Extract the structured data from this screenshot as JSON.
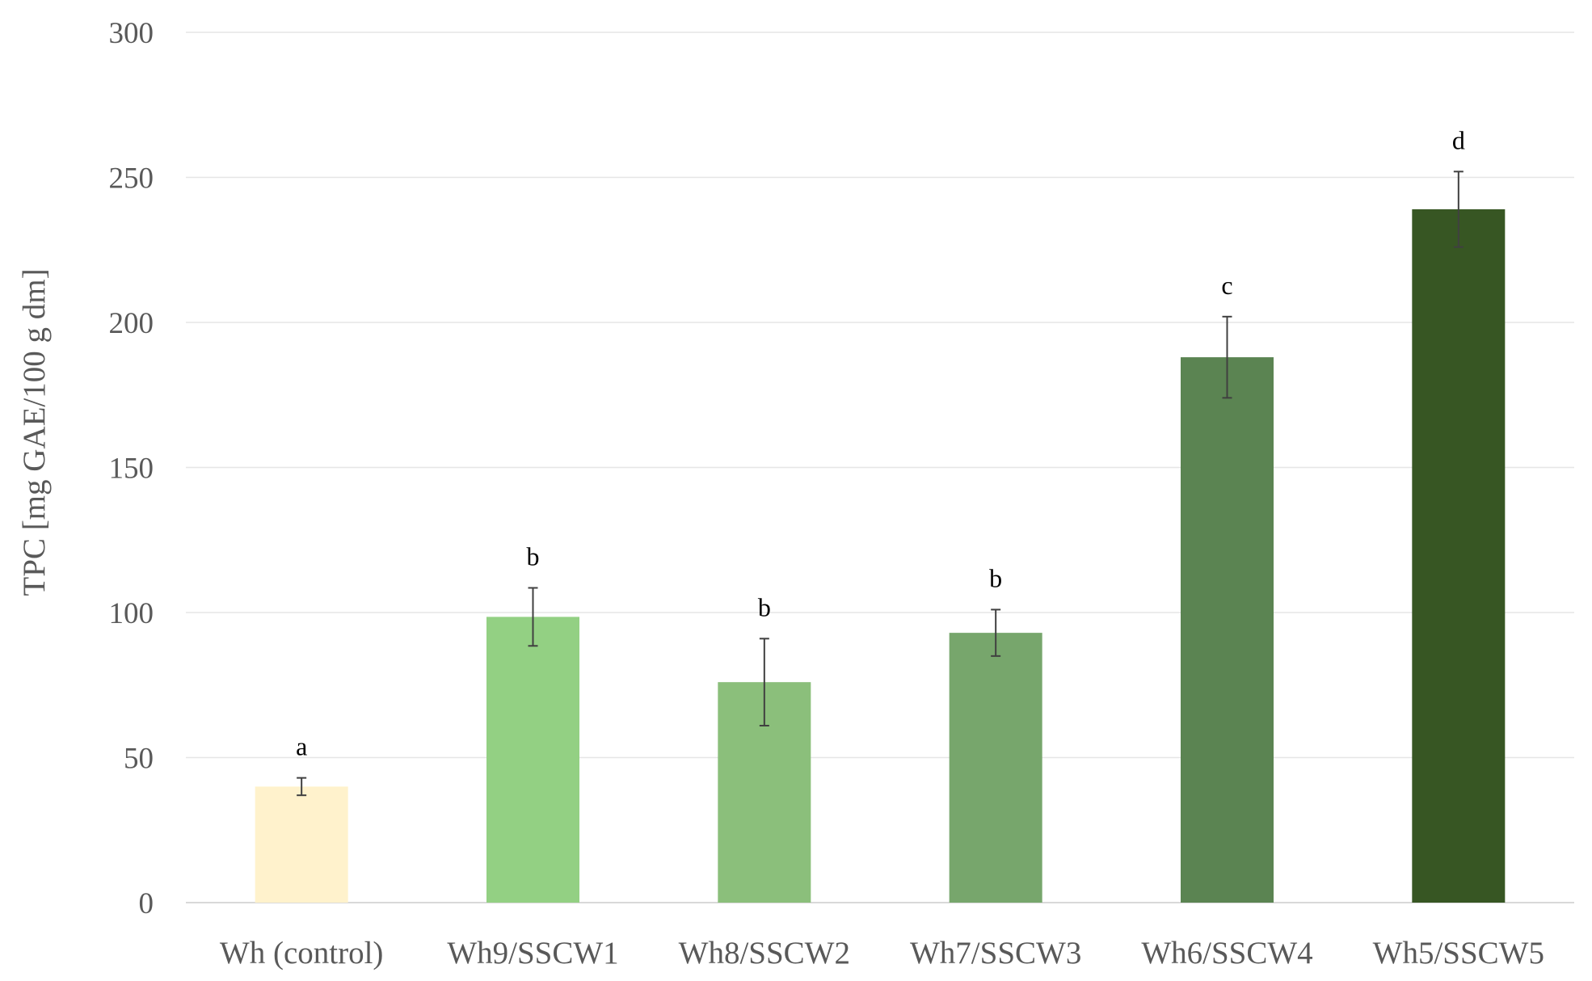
{
  "chart_data": {
    "type": "bar",
    "title": "",
    "xlabel": "",
    "ylabel": "TPC [mg GAE/100 g dm]",
    "ylim": [
      0,
      300
    ],
    "yticks": [
      0,
      50,
      100,
      150,
      200,
      250,
      300
    ],
    "grid": true,
    "legend": "none",
    "categories": [
      "Wh (control)",
      "Wh9/SSCW1",
      "Wh8/SSCW2",
      "Wh7/SSCW3",
      "Wh6/SSCW4",
      "Wh5/SSCW5"
    ],
    "values": [
      40,
      98.5,
      76,
      93,
      188,
      239
    ],
    "errors": [
      3,
      10,
      15,
      8,
      14,
      13
    ],
    "significance_labels": [
      "a",
      "b",
      "b",
      "b",
      "c",
      "d"
    ],
    "colors": [
      "#fff2cc",
      "#93d083",
      "#8bbf7b",
      "#77a66c",
      "#5b8452",
      "#375623"
    ]
  }
}
